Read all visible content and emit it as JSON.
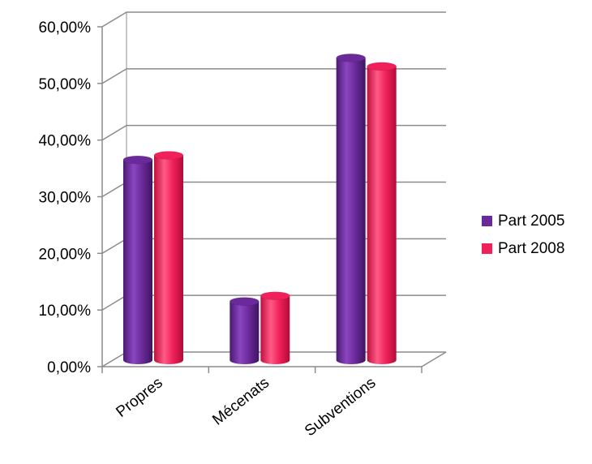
{
  "chart_data": {
    "type": "bar",
    "title": "",
    "xlabel": "",
    "ylabel": "",
    "categories": [
      "Propres",
      "Mécenats",
      "Subventions"
    ],
    "series": [
      {
        "name": "Part 2005",
        "values": [
          35.5,
          10.5,
          53.5
        ],
        "color": "#6B2A9A"
      },
      {
        "name": "Part 2008",
        "values": [
          36.3,
          11.5,
          52.0
        ],
        "color": "#F0205A"
      }
    ],
    "ylim": [
      0,
      60
    ],
    "yticks": [
      "0,00%",
      "10,00%",
      "20,00%",
      "30,00%",
      "40,00%",
      "50,00%",
      "60,00%"
    ],
    "grid": true,
    "legend": "right",
    "style": "3d-cylinder"
  }
}
